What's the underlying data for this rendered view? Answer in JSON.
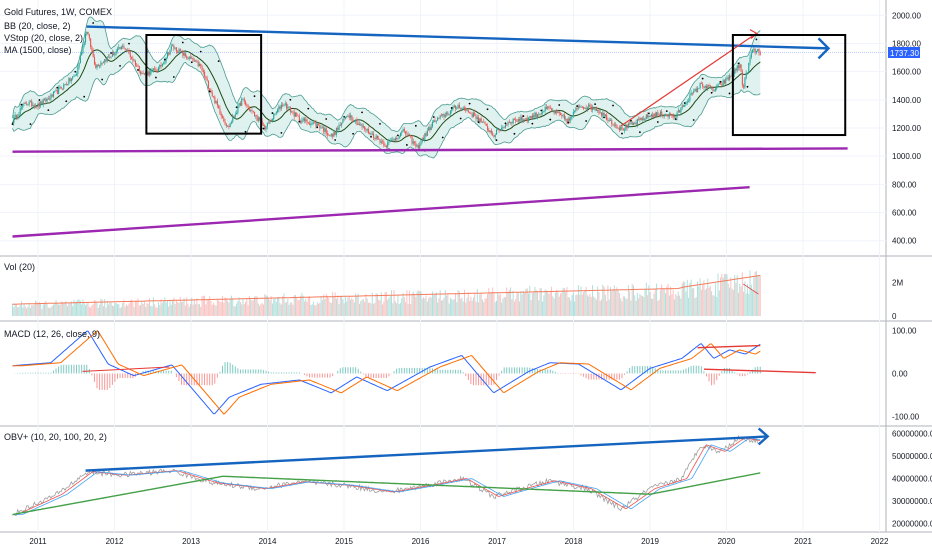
{
  "chart_title": "Gold Futures, 1W, COMEX",
  "last_price": "1737.30",
  "colors": {
    "up": "#26a69a",
    "down": "#ef5350",
    "bb_fill": "#c7e8e3",
    "bb_line": "#4a9b90",
    "ma": "#1d4a12",
    "blue_trend": "#1565c0",
    "purple_trend": "#9c27b0",
    "red_draw": "#e53935",
    "price_tag": "#2962ff",
    "vol_ma": "#f57c5c",
    "macd": "#2962ff",
    "signal": "#ff6d00",
    "obv": "#9e9e9e",
    "obv_fast": "#ef5350",
    "obv_mid": "#42a5f5",
    "obv_slow": "#43a047"
  },
  "panes": {
    "price": {
      "legend": [
        "BB (20, close, 2)",
        "VStop (20, close, 2)",
        "MA (1500, close)"
      ],
      "ticks": [
        "2000.00",
        "1800.00",
        "1600.00",
        "1400.00",
        "1200.00",
        "1000.00",
        "800.00",
        "600.00",
        "400.00"
      ]
    },
    "volume": {
      "legend": "Vol (20)",
      "ticks": [
        "2M",
        "0"
      ]
    },
    "macd": {
      "legend": "MACD (12, 26, close, 9)",
      "ticks": [
        "100.00",
        "0.00",
        "-100.00"
      ]
    },
    "obv": {
      "legend": "OBV+ (10, 20, 100, 20, 2)",
      "ticks": [
        "60000000.00",
        "50000000.00",
        "40000000.00",
        "30000000.00",
        "20000000.00"
      ]
    }
  },
  "time_axis": [
    "2011",
    "2012",
    "2013",
    "2014",
    "2015",
    "2016",
    "2017",
    "2018",
    "2019",
    "2020",
    "2021",
    "2022"
  ],
  "chart_data": {
    "type": "line",
    "symbol": "Gold Futures",
    "interval": "1W",
    "exchange": "COMEX",
    "x_range": [
      "2010-09",
      "2022-03"
    ],
    "price_ylim": [
      320,
      2080
    ],
    "price_series": {
      "name": "close",
      "x": [
        "2010-09-01",
        "2010-11-01",
        "2011-01-01",
        "2011-03-01",
        "2011-05-01",
        "2011-07-01",
        "2011-08-20",
        "2011-10-01",
        "2011-12-01",
        "2012-02-15",
        "2012-05-15",
        "2012-08-01",
        "2012-10-01",
        "2012-12-15",
        "2013-02-15",
        "2013-04-15",
        "2013-06-25",
        "2013-09-01",
        "2013-12-20",
        "2014-03-15",
        "2014-06-01",
        "2014-09-01",
        "2014-11-05",
        "2015-01-20",
        "2015-04-01",
        "2015-07-20",
        "2015-10-15",
        "2015-12-15",
        "2016-03-01",
        "2016-07-01",
        "2016-10-01",
        "2016-12-15",
        "2017-03-01",
        "2017-06-01",
        "2017-09-01",
        "2017-12-10",
        "2018-01-25",
        "2018-04-15",
        "2018-08-15",
        "2018-10-15",
        "2019-01-01",
        "2019-03-01",
        "2019-05-01",
        "2019-07-01",
        "2019-09-01",
        "2019-11-01",
        "2020-01-01",
        "2020-03-05",
        "2020-03-19",
        "2020-05-01",
        "2020-06-10"
      ],
      "values": [
        1250,
        1380,
        1360,
        1420,
        1500,
        1580,
        1900,
        1640,
        1700,
        1780,
        1580,
        1620,
        1780,
        1700,
        1640,
        1420,
        1200,
        1400,
        1200,
        1380,
        1260,
        1220,
        1140,
        1300,
        1200,
        1080,
        1180,
        1060,
        1240,
        1360,
        1270,
        1150,
        1250,
        1270,
        1340,
        1250,
        1360,
        1340,
        1190,
        1230,
        1290,
        1300,
        1280,
        1410,
        1510,
        1470,
        1540,
        1650,
        1480,
        1750,
        1737
      ]
    },
    "price_trendlines": [
      {
        "x": [
          "2011-08-20",
          "2021-05-01"
        ],
        "y": [
          1920,
          1765
        ]
      },
      {
        "x": [
          "2010-09-01",
          "2021-08-01"
        ],
        "y": [
          1032,
          1055
        ]
      },
      {
        "x": [
          "2010-09-01",
          "2020-04-20"
        ],
        "y": [
          430,
          780
        ]
      },
      {
        "x": [
          "2018-08-15",
          "2020-05-20"
        ],
        "y": [
          1215,
          1870
        ]
      }
    ],
    "macd_ylim": [
      -115,
      115
    ],
    "macd_series": {
      "name": "MACD",
      "x": [
        "2010-09-01",
        "2011-03-01",
        "2011-08-25",
        "2011-12-01",
        "2012-04-01",
        "2012-10-01",
        "2013-04-20",
        "2013-07-01",
        "2013-12-01",
        "2014-06-01",
        "2014-11-01",
        "2015-03-01",
        "2015-07-25",
        "2016-02-15",
        "2016-07-15",
        "2016-12-15",
        "2017-06-01",
        "2017-09-10",
        "2018-01-25",
        "2018-08-15",
        "2019-01-01",
        "2019-06-01",
        "2019-09-01",
        "2019-11-01",
        "2020-01-15",
        "2020-04-01",
        "2020-06-10"
      ],
      "values": [
        18,
        25,
        100,
        22,
        -5,
        20,
        -95,
        -55,
        -25,
        -15,
        -45,
        -8,
        -40,
        15,
        42,
        -45,
        5,
        25,
        22,
        -38,
        12,
        35,
        70,
        35,
        55,
        45,
        68
      ]
    },
    "obv_ylim": [
      18000000,
      62000000
    ],
    "obv_series": {
      "name": "OBV",
      "x": [
        "2010-09-01",
        "2011-04-01",
        "2011-08-25",
        "2012-02-01",
        "2012-10-01",
        "2013-04-15",
        "2013-12-01",
        "2014-06-01",
        "2015-01-01",
        "2015-08-01",
        "2016-01-01",
        "2016-07-15",
        "2016-12-15",
        "2017-06-01",
        "2017-09-10",
        "2018-03-01",
        "2018-08-15",
        "2019-01-01",
        "2019-06-01",
        "2019-09-01",
        "2019-12-01",
        "2020-03-01",
        "2020-06-10"
      ],
      "values": [
        24000000,
        33000000,
        43000000,
        41500000,
        43500000,
        38000000,
        35500000,
        38500000,
        37000000,
        34000000,
        36500000,
        40000000,
        32000000,
        36500000,
        39000000,
        35500000,
        26500000,
        35500000,
        40000000,
        55000000,
        52000000,
        58000000,
        56500000
      ]
    },
    "obv_trendline": {
      "x": [
        "2011-08-15",
        "2020-07-15"
      ],
      "y": [
        43500000,
        58700000
      ]
    }
  }
}
